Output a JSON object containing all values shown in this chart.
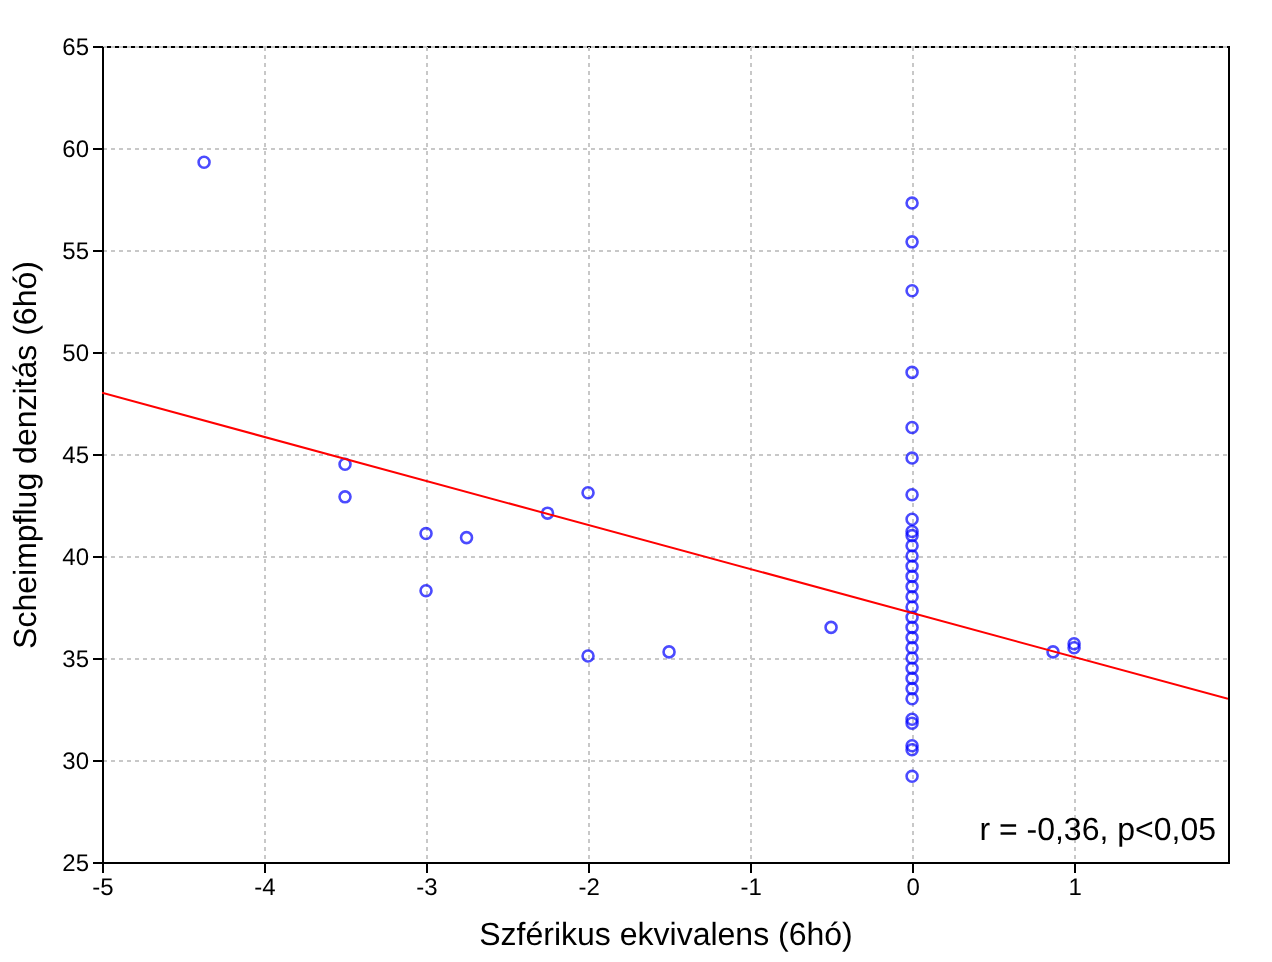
{
  "chart_data": {
    "type": "scatter",
    "xlabel": "Szférikus ekvivalens (6hó)",
    "ylabel": "Scheimpflug denzitás (6hó)",
    "xlim": [
      -5,
      1.95
    ],
    "xticks": [
      -5,
      -4,
      -3,
      -2,
      -1,
      0,
      1
    ],
    "ylim": [
      25,
      65
    ],
    "yticks": [
      25,
      30,
      35,
      40,
      45,
      50,
      55,
      60,
      65
    ],
    "grid": true,
    "marker": "circle",
    "annotations": [
      "r = -0,36, p<0,05"
    ],
    "series": [
      {
        "color": "#0000ff",
        "x": [
          -4.37,
          -3.5,
          -3.5,
          -3,
          -3,
          -2.75,
          -2.25,
          -2,
          -2,
          -1.5,
          -0.5,
          0.87,
          1,
          1,
          0,
          0,
          0,
          0,
          0,
          0,
          0,
          0,
          0,
          0,
          0,
          0,
          0,
          0,
          0,
          0,
          0,
          0,
          0,
          0,
          0,
          0,
          0,
          0,
          0,
          0,
          0,
          0,
          0,
          0,
          0
        ],
        "values": [
          59.3,
          44.5,
          42.9,
          41.1,
          38.3,
          40.9,
          42.1,
          43.1,
          35.1,
          35.3,
          36.5,
          35.3,
          35.5,
          35.7,
          57.3,
          55.4,
          53.0,
          49.0,
          46.3,
          44.8,
          43.0,
          41.8,
          41.2,
          41.0,
          40.5,
          40.0,
          39.5,
          39.0,
          38.5,
          38.0,
          37.5,
          37.0,
          36.5,
          36.0,
          35.5,
          35.0,
          34.5,
          34.0,
          33.5,
          33.0,
          32.0,
          31.8,
          30.7,
          30.5,
          29.2
        ]
      },
      {
        "type": "line",
        "marker": "none",
        "color": "#ff0000",
        "x": [
          -5,
          1.95
        ],
        "values": [
          48.0,
          33.0
        ]
      }
    ]
  }
}
